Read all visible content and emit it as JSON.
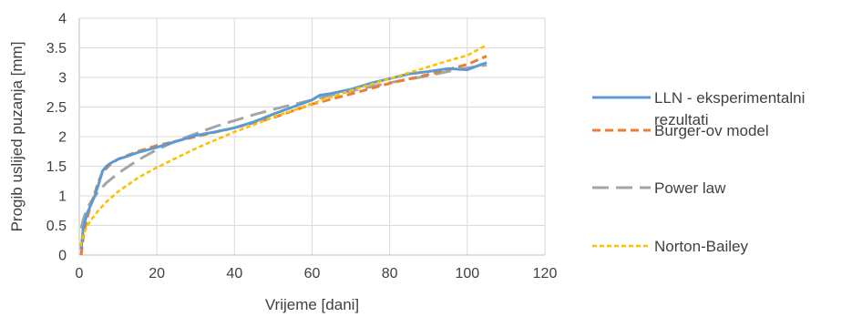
{
  "chart_data": {
    "type": "line",
    "xlabel": "Vrijeme [dani]",
    "ylabel": "Progib uslijed puzanja [mm]",
    "xlim": [
      0,
      120
    ],
    "ylim": [
      0,
      4
    ],
    "xticks": [
      0,
      20,
      40,
      60,
      80,
      100,
      120
    ],
    "yticks": [
      0,
      0.5,
      1,
      1.5,
      2,
      2.5,
      3,
      3.5,
      4
    ],
    "xtick_labels": [
      "0",
      "20",
      "40",
      "60",
      "80",
      "100",
      "120"
    ],
    "ytick_labels": [
      "0",
      "0.5",
      "1",
      "1.5",
      "2",
      "2.5",
      "3",
      "3.5",
      "4"
    ],
    "grid": "vertical-and-horizontal",
    "legend_position": "right",
    "series": [
      {
        "name": "LLN - eksperimentalni",
        "name_line2": "rezultati",
        "color": "#5b9bd5",
        "dash": "solid",
        "points": [
          [
            0.5,
            0.1
          ],
          [
            1,
            0.45
          ],
          [
            2,
            0.7
          ],
          [
            3,
            0.85
          ],
          [
            4,
            1.0
          ],
          [
            5,
            1.2
          ],
          [
            6,
            1.42
          ],
          [
            7,
            1.5
          ],
          [
            8,
            1.55
          ],
          [
            10,
            1.62
          ],
          [
            12,
            1.66
          ],
          [
            15,
            1.73
          ],
          [
            20,
            1.82
          ],
          [
            25,
            1.92
          ],
          [
            30,
            2.02
          ],
          [
            35,
            2.08
          ],
          [
            40,
            2.15
          ],
          [
            45,
            2.25
          ],
          [
            50,
            2.38
          ],
          [
            55,
            2.5
          ],
          [
            60,
            2.62
          ],
          [
            62,
            2.7
          ],
          [
            65,
            2.73
          ],
          [
            70,
            2.8
          ],
          [
            75,
            2.9
          ],
          [
            80,
            2.98
          ],
          [
            85,
            3.06
          ],
          [
            90,
            3.1
          ],
          [
            95,
            3.15
          ],
          [
            100,
            3.13
          ],
          [
            102,
            3.18
          ],
          [
            105,
            3.25
          ]
        ]
      },
      {
        "name": "Burger-ov model",
        "color": "#ed7d31",
        "dash": "dashed",
        "points": [
          [
            0.5,
            0.0
          ],
          [
            1,
            0.3
          ],
          [
            2,
            0.62
          ],
          [
            3,
            0.85
          ],
          [
            4,
            1.05
          ],
          [
            5,
            1.25
          ],
          [
            6,
            1.4
          ],
          [
            8,
            1.53
          ],
          [
            10,
            1.62
          ],
          [
            15,
            1.75
          ],
          [
            20,
            1.85
          ],
          [
            30,
            2.0
          ],
          [
            40,
            2.15
          ],
          [
            50,
            2.32
          ],
          [
            60,
            2.55
          ],
          [
            70,
            2.72
          ],
          [
            80,
            2.9
          ],
          [
            90,
            3.05
          ],
          [
            100,
            3.22
          ],
          [
            105,
            3.36
          ]
        ]
      },
      {
        "name": "Power law",
        "color": "#a5a5a5",
        "dash": "long-dashed",
        "points": [
          [
            0.5,
            0.45
          ],
          [
            1,
            0.6
          ],
          [
            2,
            0.78
          ],
          [
            3,
            0.9
          ],
          [
            5,
            1.08
          ],
          [
            7,
            1.22
          ],
          [
            10,
            1.38
          ],
          [
            15,
            1.6
          ],
          [
            20,
            1.78
          ],
          [
            25,
            1.93
          ],
          [
            30,
            2.05
          ],
          [
            35,
            2.17
          ],
          [
            40,
            2.27
          ],
          [
            45,
            2.37
          ],
          [
            50,
            2.46
          ],
          [
            55,
            2.54
          ],
          [
            60,
            2.62
          ],
          [
            65,
            2.7
          ],
          [
            70,
            2.77
          ],
          [
            75,
            2.84
          ],
          [
            80,
            2.91
          ],
          [
            85,
            2.97
          ],
          [
            90,
            3.03
          ],
          [
            95,
            3.1
          ],
          [
            100,
            3.16
          ],
          [
            105,
            3.21
          ]
        ]
      },
      {
        "name": "Norton-Bailey",
        "color": "#ffc000",
        "dash": "short-dashed",
        "points": [
          [
            0.3,
            0.15
          ],
          [
            1,
            0.34
          ],
          [
            2,
            0.48
          ],
          [
            3,
            0.59
          ],
          [
            5,
            0.76
          ],
          [
            7,
            0.9
          ],
          [
            10,
            1.07
          ],
          [
            15,
            1.3
          ],
          [
            20,
            1.48
          ],
          [
            25,
            1.64
          ],
          [
            30,
            1.8
          ],
          [
            35,
            1.94
          ],
          [
            40,
            2.08
          ],
          [
            45,
            2.2
          ],
          [
            50,
            2.33
          ],
          [
            55,
            2.44
          ],
          [
            60,
            2.56
          ],
          [
            65,
            2.67
          ],
          [
            70,
            2.78
          ],
          [
            75,
            2.88
          ],
          [
            80,
            2.98
          ],
          [
            85,
            3.08
          ],
          [
            90,
            3.18
          ],
          [
            95,
            3.28
          ],
          [
            100,
            3.37
          ],
          [
            105,
            3.55
          ]
        ]
      }
    ]
  }
}
